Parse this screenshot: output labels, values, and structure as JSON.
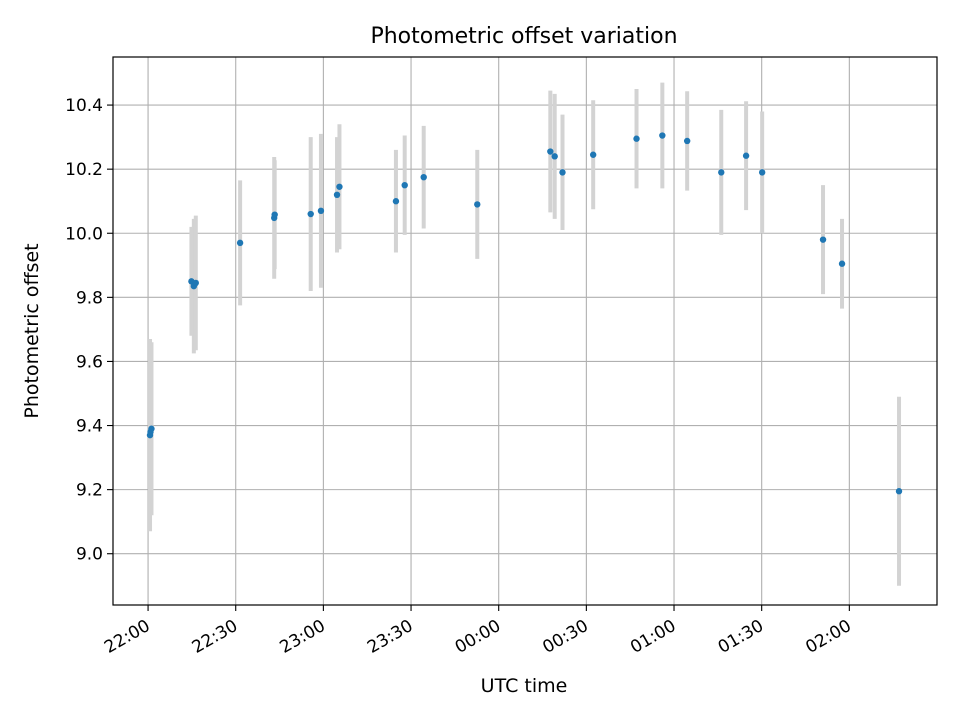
{
  "chart_data": {
    "type": "scatter",
    "title": "Photometric offset variation",
    "xlabel": "UTC time",
    "ylabel": "Photometric offset",
    "x_unit": "UTC time (HH:MM, night spanning midnight)",
    "xlim": [
      "21:48",
      "02:30"
    ],
    "ylim": [
      8.84,
      10.55
    ],
    "grid": true,
    "legend": "none",
    "x_ticks": [
      "22:00",
      "22:30",
      "23:00",
      "23:30",
      "00:00",
      "00:30",
      "01:00",
      "01:30",
      "02:00"
    ],
    "y_ticks": [
      "9.0",
      "9.2",
      "9.4",
      "9.6",
      "9.8",
      "10.0",
      "10.2",
      "10.4"
    ],
    "colors": {
      "marker": "#1f77b4",
      "errorbar": "#d3d3d3",
      "grid": "#b0b0b0"
    },
    "series": [
      {
        "points": [
          {
            "x": "22:00:40",
            "y": 9.37,
            "err": 0.3
          },
          {
            "x": "22:00:50",
            "y": 9.38,
            "err": 0.25
          },
          {
            "x": "22:01:10",
            "y": 9.39,
            "err": 0.27
          },
          {
            "x": "22:14:50",
            "y": 9.85,
            "err": 0.17
          },
          {
            "x": "22:15:40",
            "y": 9.835,
            "err": 0.21
          },
          {
            "x": "22:16:20",
            "y": 9.845,
            "err": 0.21
          },
          {
            "x": "22:31:30",
            "y": 9.97,
            "err": 0.195
          },
          {
            "x": "22:43:10",
            "y": 10.048,
            "err": 0.19
          },
          {
            "x": "22:43:20",
            "y": 10.058,
            "err": 0.17
          },
          {
            "x": "22:55:40",
            "y": 10.06,
            "err": 0.24
          },
          {
            "x": "22:59:10",
            "y": 10.07,
            "err": 0.24
          },
          {
            "x": "23:04:40",
            "y": 10.12,
            "err": 0.18
          },
          {
            "x": "23:05:30",
            "y": 10.145,
            "err": 0.195
          },
          {
            "x": "23:24:50",
            "y": 10.1,
            "err": 0.16
          },
          {
            "x": "23:27:50",
            "y": 10.15,
            "err": 0.155
          },
          {
            "x": "23:34:20",
            "y": 10.175,
            "err": 0.16
          },
          {
            "x": "23:52:40",
            "y": 10.09,
            "err": 0.17
          },
          {
            "x": "00:17:40",
            "y": 10.255,
            "err": 0.19
          },
          {
            "x": "00:19:10",
            "y": 10.24,
            "err": 0.195
          },
          {
            "x": "00:21:50",
            "y": 10.19,
            "err": 0.18
          },
          {
            "x": "00:32:20",
            "y": 10.245,
            "err": 0.17
          },
          {
            "x": "00:47:10",
            "y": 10.295,
            "err": 0.155
          },
          {
            "x": "00:56:00",
            "y": 10.305,
            "err": 0.165
          },
          {
            "x": "01:04:30",
            "y": 10.288,
            "err": 0.155
          },
          {
            "x": "01:16:10",
            "y": 10.19,
            "err": 0.195
          },
          {
            "x": "01:24:40",
            "y": 10.242,
            "err": 0.17
          },
          {
            "x": "01:30:10",
            "y": 10.19,
            "err": 0.19
          },
          {
            "x": "01:51:00",
            "y": 9.98,
            "err": 0.17
          },
          {
            "x": "01:57:30",
            "y": 9.905,
            "err": 0.14
          },
          {
            "x": "02:17:00",
            "y": 9.195,
            "err": 0.295
          }
        ]
      }
    ]
  }
}
